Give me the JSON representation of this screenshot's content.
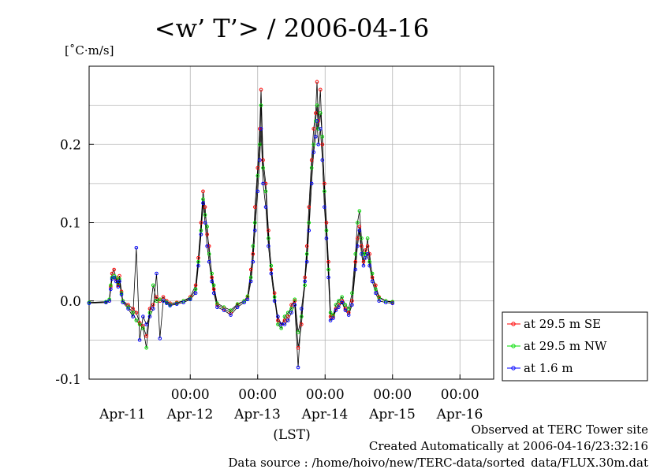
{
  "chart_data": {
    "type": "line",
    "title": "<w’ T’> / 2006-04-16",
    "ylabel": "[˚C·m/s]",
    "xlabel": "(LST)",
    "ylim": [
      -0.1,
      0.3
    ],
    "yticks": [
      -0.1,
      0.0,
      0.1,
      0.2
    ],
    "ytick_labels": [
      "-0.1",
      "0.0",
      "0.1",
      "0.2"
    ],
    "x_unit": "days since Apr-10 00:00",
    "xlim": [
      0.5,
      6.5
    ],
    "midnight_ticks": [
      {
        "x": 2,
        "label": "00:00"
      },
      {
        "x": 3,
        "label": "00:00"
      },
      {
        "x": 4,
        "label": "00:00"
      },
      {
        "x": 5,
        "label": "00:00"
      },
      {
        "x": 6,
        "label": "00:00"
      }
    ],
    "day_labels": [
      {
        "x": 1.5,
        "label": "Apr-11"
      },
      {
        "x": 2.5,
        "label": "Apr-12"
      },
      {
        "x": 3.5,
        "label": "Apr-13"
      },
      {
        "x": 4.5,
        "label": "Apr-14"
      },
      {
        "x": 5.5,
        "label": "Apr-15"
      },
      {
        "x": 6.5,
        "label": "Apr-16"
      }
    ],
    "grid": true,
    "legend_position": "right-bottom",
    "series": [
      {
        "name": "at 29.5 m SE",
        "color": "#ff0000",
        "points": [
          [
            0.5,
            -0.002
          ],
          [
            0.75,
            -0.002
          ],
          [
            0.8,
            0.0
          ],
          [
            0.82,
            0.018
          ],
          [
            0.84,
            0.035
          ],
          [
            0.87,
            0.04
          ],
          [
            0.9,
            0.028
          ],
          [
            0.93,
            0.02
          ],
          [
            0.95,
            0.032
          ],
          [
            0.98,
            0.012
          ],
          [
            1.0,
            0.0
          ],
          [
            1.08,
            -0.005
          ],
          [
            1.15,
            -0.01
          ],
          [
            1.2,
            -0.015
          ],
          [
            1.25,
            -0.028
          ],
          [
            1.3,
            -0.032
          ],
          [
            1.35,
            -0.045
          ],
          [
            1.4,
            -0.01
          ],
          [
            1.45,
            -0.005
          ],
          [
            1.5,
            0.005
          ],
          [
            1.55,
            0.0
          ],
          [
            1.6,
            0.005
          ],
          [
            1.65,
            0.0
          ],
          [
            1.7,
            -0.003
          ],
          [
            1.8,
            -0.002
          ],
          [
            1.9,
            0.0
          ],
          [
            2.0,
            0.005
          ],
          [
            2.08,
            0.02
          ],
          [
            2.12,
            0.055
          ],
          [
            2.16,
            0.1
          ],
          [
            2.19,
            0.14
          ],
          [
            2.22,
            0.12
          ],
          [
            2.25,
            0.085
          ],
          [
            2.28,
            0.07
          ],
          [
            2.32,
            0.03
          ],
          [
            2.35,
            0.015
          ],
          [
            2.4,
            -0.005
          ],
          [
            2.5,
            -0.01
          ],
          [
            2.6,
            -0.015
          ],
          [
            2.7,
            -0.005
          ],
          [
            2.8,
            0.0
          ],
          [
            2.85,
            0.005
          ],
          [
            2.9,
            0.04
          ],
          [
            2.93,
            0.06
          ],
          [
            2.96,
            0.12
          ],
          [
            3.0,
            0.17
          ],
          [
            3.03,
            0.22
          ],
          [
            3.05,
            0.27
          ],
          [
            3.08,
            0.18
          ],
          [
            3.12,
            0.15
          ],
          [
            3.16,
            0.09
          ],
          [
            3.2,
            0.04
          ],
          [
            3.25,
            0.01
          ],
          [
            3.3,
            -0.025
          ],
          [
            3.35,
            -0.03
          ],
          [
            3.4,
            -0.025
          ],
          [
            3.45,
            -0.02
          ],
          [
            3.5,
            -0.005
          ],
          [
            3.55,
            0.0
          ],
          [
            3.6,
            -0.06
          ],
          [
            3.65,
            -0.03
          ],
          [
            3.7,
            0.03
          ],
          [
            3.73,
            0.07
          ],
          [
            3.76,
            0.12
          ],
          [
            3.8,
            0.18
          ],
          [
            3.83,
            0.22
          ],
          [
            3.86,
            0.24
          ],
          [
            3.88,
            0.28
          ],
          [
            3.9,
            0.23
          ],
          [
            3.93,
            0.27
          ],
          [
            3.96,
            0.2
          ],
          [
            3.99,
            0.15
          ],
          [
            4.02,
            0.1
          ],
          [
            4.05,
            0.05
          ],
          [
            4.08,
            -0.02
          ],
          [
            4.12,
            -0.02
          ],
          [
            4.16,
            -0.01
          ],
          [
            4.2,
            -0.005
          ],
          [
            4.25,
            0.0
          ],
          [
            4.3,
            -0.01
          ],
          [
            4.35,
            -0.015
          ],
          [
            4.4,
            0.0
          ],
          [
            4.45,
            0.05
          ],
          [
            4.48,
            0.08
          ],
          [
            4.51,
            0.095
          ],
          [
            4.54,
            0.07
          ],
          [
            4.57,
            0.05
          ],
          [
            4.6,
            0.065
          ],
          [
            4.63,
            0.07
          ],
          [
            4.66,
            0.06
          ],
          [
            4.7,
            0.03
          ],
          [
            4.75,
            0.02
          ],
          [
            4.8,
            0.005
          ],
          [
            4.9,
            0.0
          ],
          [
            5.0,
            -0.002
          ]
        ]
      },
      {
        "name": "at 29.5 m NW",
        "color": "#00dd00",
        "points": [
          [
            0.5,
            -0.002
          ],
          [
            0.75,
            -0.001
          ],
          [
            0.8,
            0.002
          ],
          [
            0.82,
            0.02
          ],
          [
            0.84,
            0.03
          ],
          [
            0.87,
            0.032
          ],
          [
            0.9,
            0.03
          ],
          [
            0.93,
            0.022
          ],
          [
            0.95,
            0.028
          ],
          [
            0.98,
            0.01
          ],
          [
            1.0,
            0.0
          ],
          [
            1.08,
            -0.008
          ],
          [
            1.15,
            -0.015
          ],
          [
            1.2,
            -0.025
          ],
          [
            1.25,
            -0.03
          ],
          [
            1.3,
            -0.035
          ],
          [
            1.35,
            -0.06
          ],
          [
            1.4,
            -0.015
          ],
          [
            1.45,
            0.02
          ],
          [
            1.5,
            0.0
          ],
          [
            1.55,
            0.002
          ],
          [
            1.6,
            0.0
          ],
          [
            1.65,
            -0.002
          ],
          [
            1.7,
            -0.005
          ],
          [
            1.8,
            -0.003
          ],
          [
            1.9,
            0.0
          ],
          [
            2.0,
            0.003
          ],
          [
            2.08,
            0.015
          ],
          [
            2.12,
            0.05
          ],
          [
            2.16,
            0.09
          ],
          [
            2.19,
            0.13
          ],
          [
            2.22,
            0.11
          ],
          [
            2.25,
            0.095
          ],
          [
            2.28,
            0.06
          ],
          [
            2.32,
            0.035
          ],
          [
            2.35,
            0.02
          ],
          [
            2.4,
            -0.003
          ],
          [
            2.5,
            -0.008
          ],
          [
            2.6,
            -0.012
          ],
          [
            2.7,
            -0.004
          ],
          [
            2.8,
            0.0
          ],
          [
            2.85,
            0.006
          ],
          [
            2.9,
            0.03
          ],
          [
            2.93,
            0.07
          ],
          [
            2.96,
            0.1
          ],
          [
            3.0,
            0.16
          ],
          [
            3.03,
            0.2
          ],
          [
            3.05,
            0.25
          ],
          [
            3.08,
            0.17
          ],
          [
            3.12,
            0.14
          ],
          [
            3.16,
            0.08
          ],
          [
            3.2,
            0.045
          ],
          [
            3.25,
            0.005
          ],
          [
            3.3,
            -0.03
          ],
          [
            3.35,
            -0.035
          ],
          [
            3.4,
            -0.02
          ],
          [
            3.45,
            -0.015
          ],
          [
            3.5,
            -0.01
          ],
          [
            3.55,
            0.002
          ],
          [
            3.6,
            -0.04
          ],
          [
            3.65,
            -0.02
          ],
          [
            3.7,
            0.02
          ],
          [
            3.73,
            0.06
          ],
          [
            3.76,
            0.1
          ],
          [
            3.8,
            0.17
          ],
          [
            3.83,
            0.2
          ],
          [
            3.86,
            0.23
          ],
          [
            3.88,
            0.25
          ],
          [
            3.9,
            0.22
          ],
          [
            3.93,
            0.24
          ],
          [
            3.96,
            0.21
          ],
          [
            3.99,
            0.14
          ],
          [
            4.02,
            0.09
          ],
          [
            4.05,
            0.04
          ],
          [
            4.08,
            -0.015
          ],
          [
            4.12,
            -0.018
          ],
          [
            4.16,
            -0.005
          ],
          [
            4.2,
            0.0
          ],
          [
            4.25,
            0.005
          ],
          [
            4.3,
            -0.005
          ],
          [
            4.35,
            -0.01
          ],
          [
            4.4,
            0.01
          ],
          [
            4.45,
            0.06
          ],
          [
            4.48,
            0.1
          ],
          [
            4.51,
            0.115
          ],
          [
            4.54,
            0.08
          ],
          [
            4.57,
            0.06
          ],
          [
            4.6,
            0.06
          ],
          [
            4.63,
            0.08
          ],
          [
            4.66,
            0.05
          ],
          [
            4.7,
            0.035
          ],
          [
            4.75,
            0.015
          ],
          [
            4.8,
            0.004
          ],
          [
            4.9,
            0.0
          ],
          [
            5.0,
            -0.001
          ]
        ]
      },
      {
        "name": "at 1.6 m",
        "color": "#0000ff",
        "points": [
          [
            0.5,
            -0.003
          ],
          [
            0.75,
            -0.002
          ],
          [
            0.8,
            0.0
          ],
          [
            0.82,
            0.015
          ],
          [
            0.84,
            0.028
          ],
          [
            0.87,
            0.03
          ],
          [
            0.9,
            0.025
          ],
          [
            0.93,
            0.018
          ],
          [
            0.95,
            0.025
          ],
          [
            0.98,
            0.008
          ],
          [
            1.0,
            -0.002
          ],
          [
            1.08,
            -0.01
          ],
          [
            1.15,
            -0.02
          ],
          [
            1.2,
            0.068
          ],
          [
            1.25,
            -0.05
          ],
          [
            1.3,
            -0.02
          ],
          [
            1.35,
            -0.03
          ],
          [
            1.4,
            -0.02
          ],
          [
            1.45,
            -0.01
          ],
          [
            1.5,
            0.035
          ],
          [
            1.55,
            -0.048
          ],
          [
            1.6,
            0.0
          ],
          [
            1.65,
            -0.003
          ],
          [
            1.7,
            -0.006
          ],
          [
            1.8,
            -0.004
          ],
          [
            1.9,
            -0.002
          ],
          [
            2.0,
            0.002
          ],
          [
            2.08,
            0.01
          ],
          [
            2.12,
            0.045
          ],
          [
            2.16,
            0.085
          ],
          [
            2.19,
            0.125
          ],
          [
            2.22,
            0.1
          ],
          [
            2.25,
            0.07
          ],
          [
            2.28,
            0.05
          ],
          [
            2.32,
            0.025
          ],
          [
            2.35,
            0.01
          ],
          [
            2.4,
            -0.008
          ],
          [
            2.5,
            -0.012
          ],
          [
            2.6,
            -0.018
          ],
          [
            2.7,
            -0.008
          ],
          [
            2.8,
            -0.002
          ],
          [
            2.85,
            0.002
          ],
          [
            2.9,
            0.025
          ],
          [
            2.93,
            0.05
          ],
          [
            2.96,
            0.09
          ],
          [
            3.0,
            0.14
          ],
          [
            3.03,
            0.18
          ],
          [
            3.05,
            0.22
          ],
          [
            3.08,
            0.15
          ],
          [
            3.12,
            0.12
          ],
          [
            3.16,
            0.07
          ],
          [
            3.2,
            0.035
          ],
          [
            3.25,
            0.0
          ],
          [
            3.3,
            -0.02
          ],
          [
            3.35,
            -0.03
          ],
          [
            3.4,
            -0.03
          ],
          [
            3.45,
            -0.025
          ],
          [
            3.5,
            -0.015
          ],
          [
            3.55,
            -0.005
          ],
          [
            3.6,
            -0.085
          ],
          [
            3.65,
            -0.01
          ],
          [
            3.7,
            0.025
          ],
          [
            3.73,
            0.05
          ],
          [
            3.76,
            0.09
          ],
          [
            3.8,
            0.15
          ],
          [
            3.83,
            0.19
          ],
          [
            3.86,
            0.21
          ],
          [
            3.88,
            0.23
          ],
          [
            3.9,
            0.2
          ],
          [
            3.93,
            0.22
          ],
          [
            3.96,
            0.18
          ],
          [
            3.99,
            0.12
          ],
          [
            4.02,
            0.08
          ],
          [
            4.05,
            0.03
          ],
          [
            4.08,
            -0.025
          ],
          [
            4.12,
            -0.022
          ],
          [
            4.16,
            -0.012
          ],
          [
            4.2,
            -0.008
          ],
          [
            4.25,
            -0.002
          ],
          [
            4.3,
            -0.012
          ],
          [
            4.35,
            -0.018
          ],
          [
            4.4,
            -0.005
          ],
          [
            4.45,
            0.04
          ],
          [
            4.48,
            0.07
          ],
          [
            4.51,
            0.09
          ],
          [
            4.54,
            0.06
          ],
          [
            4.57,
            0.045
          ],
          [
            4.6,
            0.055
          ],
          [
            4.63,
            0.06
          ],
          [
            4.66,
            0.045
          ],
          [
            4.7,
            0.025
          ],
          [
            4.75,
            0.01
          ],
          [
            4.8,
            0.0
          ],
          [
            4.9,
            -0.002
          ],
          [
            5.0,
            -0.003
          ]
        ]
      }
    ]
  },
  "footer": {
    "site": "Observed at TERC Tower site",
    "created": "Created Automatically at 2006-04-16/23:32:16",
    "source": "Data source : /home/hoivo/new/TERC-data/sorted_data/FLUX.30m.dat"
  }
}
